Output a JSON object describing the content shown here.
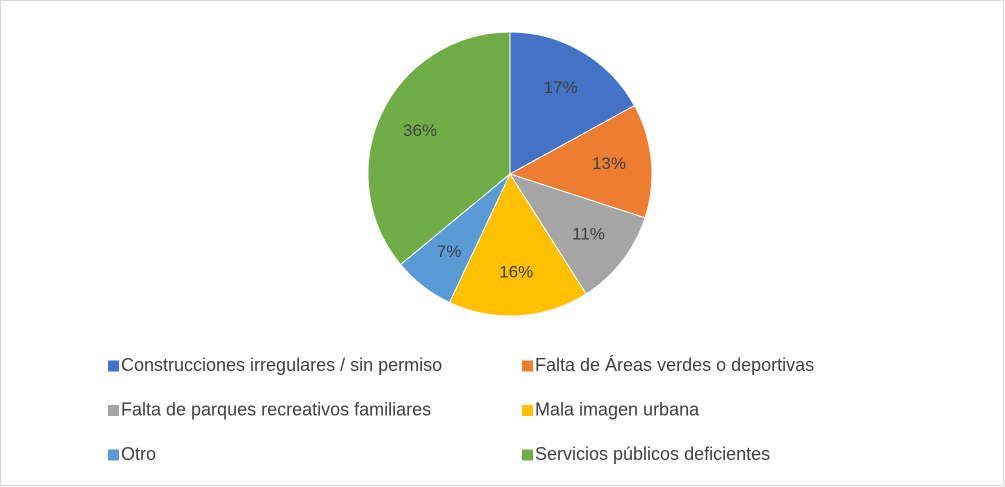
{
  "chart_data": {
    "type": "pie",
    "categories": [
      "Construcciones irregulares / sin permiso",
      "Falta de Áreas verdes o deportivas",
      "Falta de parques recreativos familiares",
      "Mala imagen urbana",
      "Otro",
      "Servicios públicos deficientes"
    ],
    "values": [
      17,
      13,
      11,
      16,
      7,
      36
    ],
    "value_labels": [
      "17%",
      "13%",
      "11%",
      "16%",
      "7%",
      "36%"
    ],
    "colors": [
      "#4472c4",
      "#ed7d31",
      "#a5a5a5",
      "#ffc000",
      "#5b9bd5",
      "#70ad47"
    ],
    "legend": "bottom"
  }
}
